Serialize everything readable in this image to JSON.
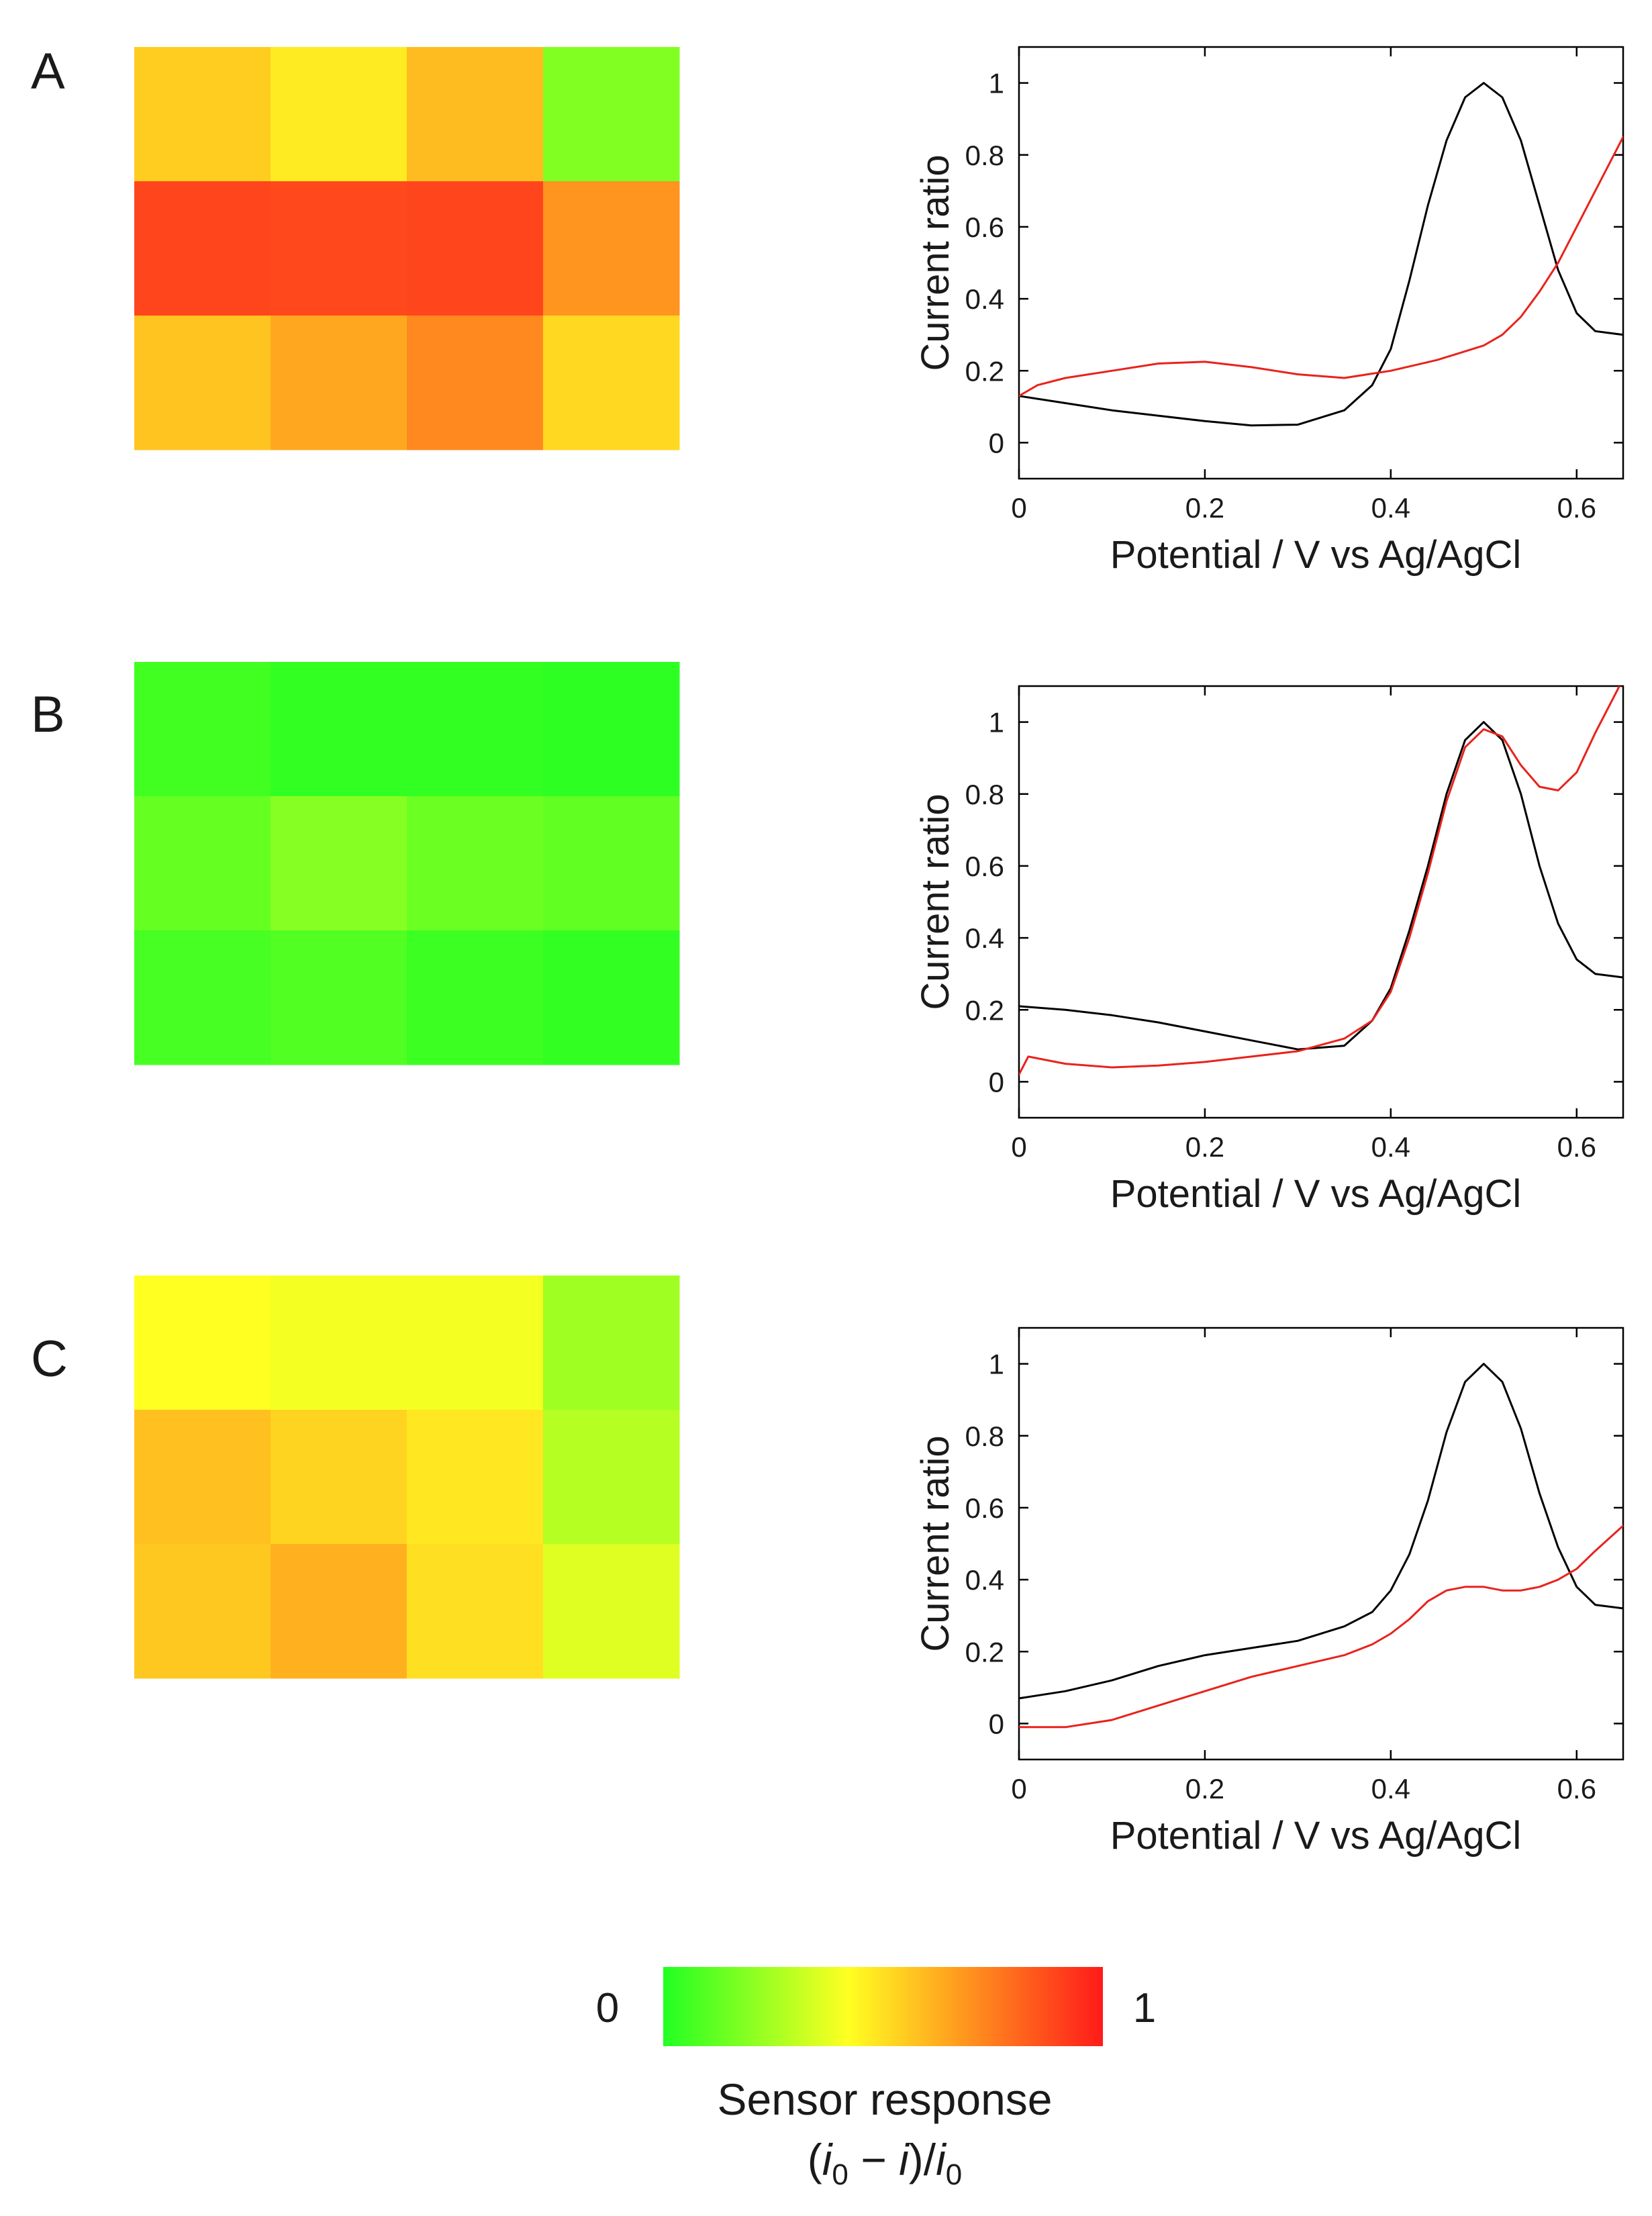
{
  "panels": [
    {
      "letter": "A",
      "heatmap": [
        [
          0.55,
          0.47,
          0.59,
          0.18
        ],
        [
          0.89,
          0.88,
          0.89,
          0.69
        ],
        [
          0.57,
          0.64,
          0.72,
          0.52
        ]
      ]
    },
    {
      "letter": "B",
      "heatmap": [
        [
          0.06,
          0.03,
          0.03,
          0.02
        ],
        [
          0.13,
          0.19,
          0.14,
          0.12
        ],
        [
          0.07,
          0.09,
          0.05,
          0.03
        ]
      ]
    },
    {
      "letter": "C",
      "heatmap": [
        [
          0.42,
          0.4,
          0.4,
          0.24
        ],
        [
          0.58,
          0.53,
          0.48,
          0.28
        ],
        [
          0.56,
          0.62,
          0.5,
          0.36
        ]
      ]
    }
  ],
  "chart_data": [
    {
      "type": "line",
      "panel": "A",
      "xlabel": "Potential / V vs Ag/AgCl",
      "ylabel": "Current ratio",
      "xlim": [
        0,
        0.65
      ],
      "ylim": [
        -0.1,
        1.1
      ],
      "xticks": [
        0,
        0.2,
        0.4,
        0.6
      ],
      "yticks": [
        0,
        0.2,
        0.4,
        0.6,
        0.8,
        1
      ],
      "series": [
        {
          "name": "black",
          "color": "#000000",
          "x": [
            0,
            0.05,
            0.1,
            0.15,
            0.2,
            0.25,
            0.3,
            0.35,
            0.38,
            0.4,
            0.42,
            0.44,
            0.46,
            0.48,
            0.5,
            0.52,
            0.54,
            0.56,
            0.58,
            0.6,
            0.62,
            0.65
          ],
          "y": [
            0.13,
            0.11,
            0.09,
            0.075,
            0.06,
            0.048,
            0.05,
            0.09,
            0.16,
            0.26,
            0.45,
            0.66,
            0.84,
            0.96,
            1.0,
            0.96,
            0.84,
            0.66,
            0.48,
            0.36,
            0.31,
            0.3
          ]
        },
        {
          "name": "red",
          "color": "#e8231c",
          "x": [
            0,
            0.02,
            0.05,
            0.1,
            0.15,
            0.2,
            0.25,
            0.3,
            0.35,
            0.4,
            0.45,
            0.5,
            0.52,
            0.54,
            0.56,
            0.58,
            0.6,
            0.62,
            0.65
          ],
          "y": [
            0.13,
            0.16,
            0.18,
            0.2,
            0.22,
            0.225,
            0.21,
            0.19,
            0.18,
            0.2,
            0.23,
            0.27,
            0.3,
            0.35,
            0.42,
            0.5,
            0.6,
            0.7,
            0.85
          ]
        }
      ]
    },
    {
      "type": "line",
      "panel": "B",
      "xlabel": "Potential / V vs Ag/AgCl",
      "ylabel": "Current ratio",
      "xlim": [
        0,
        0.65
      ],
      "ylim": [
        -0.1,
        1.1
      ],
      "xticks": [
        0,
        0.2,
        0.4,
        0.6
      ],
      "yticks": [
        0,
        0.2,
        0.4,
        0.6,
        0.8,
        1
      ],
      "series": [
        {
          "name": "black",
          "color": "#000000",
          "x": [
            0,
            0.05,
            0.1,
            0.15,
            0.2,
            0.25,
            0.3,
            0.35,
            0.38,
            0.4,
            0.42,
            0.44,
            0.46,
            0.48,
            0.5,
            0.52,
            0.54,
            0.56,
            0.58,
            0.6,
            0.62,
            0.65
          ],
          "y": [
            0.21,
            0.2,
            0.185,
            0.165,
            0.14,
            0.115,
            0.09,
            0.1,
            0.17,
            0.26,
            0.42,
            0.6,
            0.8,
            0.95,
            1.0,
            0.95,
            0.8,
            0.6,
            0.44,
            0.34,
            0.3,
            0.29
          ]
        },
        {
          "name": "red",
          "color": "#e8231c",
          "x": [
            0,
            0.01,
            0.05,
            0.1,
            0.15,
            0.2,
            0.25,
            0.3,
            0.35,
            0.38,
            0.4,
            0.42,
            0.44,
            0.46,
            0.48,
            0.5,
            0.52,
            0.54,
            0.56,
            0.58,
            0.6,
            0.62,
            0.65
          ],
          "y": [
            0.02,
            0.07,
            0.05,
            0.04,
            0.045,
            0.055,
            0.07,
            0.085,
            0.12,
            0.17,
            0.25,
            0.4,
            0.58,
            0.78,
            0.93,
            0.98,
            0.96,
            0.88,
            0.82,
            0.81,
            0.86,
            0.97,
            1.12
          ]
        }
      ]
    },
    {
      "type": "line",
      "panel": "C",
      "xlabel": "Potential / V vs Ag/AgCl",
      "ylabel": "Current ratio",
      "xlim": [
        0,
        0.65
      ],
      "ylim": [
        -0.1,
        1.1
      ],
      "xticks": [
        0,
        0.2,
        0.4,
        0.6
      ],
      "yticks": [
        0,
        0.2,
        0.4,
        0.6,
        0.8,
        1
      ],
      "series": [
        {
          "name": "black",
          "color": "#000000",
          "x": [
            0,
            0.05,
            0.1,
            0.15,
            0.2,
            0.25,
            0.3,
            0.35,
            0.38,
            0.4,
            0.42,
            0.44,
            0.46,
            0.48,
            0.5,
            0.52,
            0.54,
            0.56,
            0.58,
            0.6,
            0.62,
            0.65
          ],
          "y": [
            0.07,
            0.09,
            0.12,
            0.16,
            0.19,
            0.21,
            0.23,
            0.27,
            0.31,
            0.37,
            0.47,
            0.62,
            0.81,
            0.95,
            1.0,
            0.95,
            0.82,
            0.64,
            0.49,
            0.38,
            0.33,
            0.32
          ]
        },
        {
          "name": "red",
          "color": "#e8231c",
          "x": [
            0,
            0.05,
            0.1,
            0.15,
            0.2,
            0.25,
            0.3,
            0.35,
            0.38,
            0.4,
            0.42,
            0.44,
            0.46,
            0.48,
            0.5,
            0.52,
            0.54,
            0.56,
            0.58,
            0.6,
            0.62,
            0.65
          ],
          "y": [
            -0.01,
            -0.01,
            0.01,
            0.05,
            0.09,
            0.13,
            0.16,
            0.19,
            0.22,
            0.25,
            0.29,
            0.34,
            0.37,
            0.38,
            0.38,
            0.37,
            0.37,
            0.38,
            0.4,
            0.43,
            0.48,
            0.55
          ]
        }
      ]
    }
  ],
  "colorbar": {
    "min_label": "0",
    "max_label": "1",
    "title_line1": "Sensor response",
    "title_line2_i0": "i",
    "title_line2_sub": "0",
    "title_line2_minus": " − ",
    "title_line2_i": "i",
    "title_line2_close": ")/",
    "title_line2_open": "(",
    "colors": [
      "#22ff22",
      "#ffff22",
      "#ff1a1a"
    ]
  }
}
